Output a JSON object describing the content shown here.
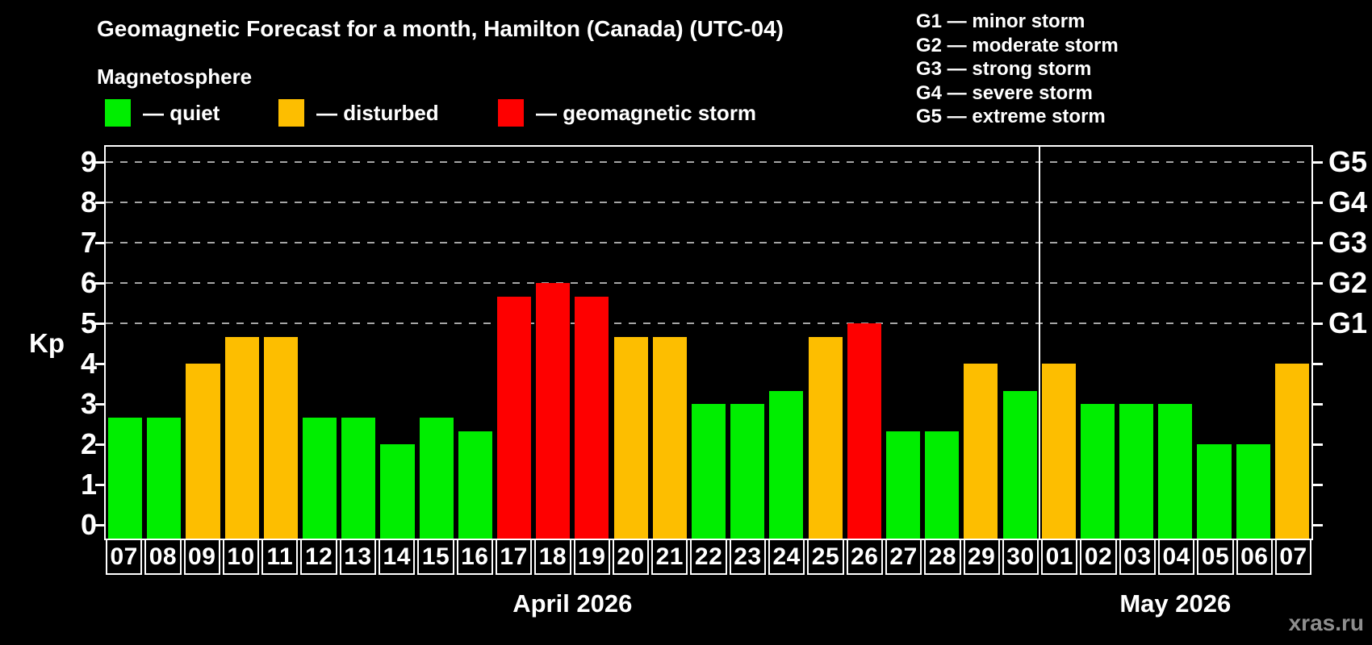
{
  "header": {
    "title": "Geomagnetic Forecast for a month, Hamilton (Canada) (UTC-04)",
    "subtitle": "Magnetosphere"
  },
  "legend": {
    "items": [
      {
        "key": "quiet",
        "label": "— quiet",
        "color": "#00ee00"
      },
      {
        "key": "disturbed",
        "label": "— disturbed",
        "color": "#fdbe00"
      },
      {
        "key": "storm",
        "label": "— geomagnetic storm",
        "color": "#fe0000"
      }
    ]
  },
  "g_legend": [
    {
      "label": "G1 — minor storm"
    },
    {
      "label": "G2 — moderate storm"
    },
    {
      "label": "G3 — strong storm"
    },
    {
      "label": "G4 — severe storm"
    },
    {
      "label": "G5 — extreme storm"
    }
  ],
  "watermark": "xras.ru",
  "chart_data": {
    "type": "bar",
    "title": "Geomagnetic Forecast for a month, Hamilton (Canada) (UTC-04)",
    "ylabel": "Kp",
    "ylim": [
      0,
      9
    ],
    "y_ticks": [
      0,
      1,
      2,
      3,
      4,
      5,
      6,
      7,
      8,
      9
    ],
    "gridlines_at": [
      5,
      6,
      7,
      8,
      9
    ],
    "grid": "dashed horizontal at G-storm levels only",
    "right_axis": [
      {
        "label": "G1",
        "kp": 5
      },
      {
        "label": "G2",
        "kp": 6
      },
      {
        "label": "G3",
        "kp": 7
      },
      {
        "label": "G4",
        "kp": 8
      },
      {
        "label": "G5",
        "kp": 9
      }
    ],
    "months": [
      {
        "label": "April 2026",
        "count": 24
      },
      {
        "label": "May 2026",
        "count": 7
      }
    ],
    "categories": [
      "07",
      "08",
      "09",
      "10",
      "11",
      "12",
      "13",
      "14",
      "15",
      "16",
      "17",
      "18",
      "19",
      "20",
      "21",
      "22",
      "23",
      "24",
      "25",
      "26",
      "27",
      "28",
      "29",
      "30",
      "01",
      "02",
      "03",
      "04",
      "05",
      "06",
      "07"
    ],
    "values": [
      2.67,
      2.67,
      4,
      4.67,
      4.67,
      2.67,
      2.67,
      2,
      2.67,
      2.33,
      5.67,
      6,
      5.67,
      4.67,
      4.67,
      3,
      3,
      3.33,
      4.67,
      5,
      2.33,
      2.33,
      4,
      3.33,
      4,
      3,
      3,
      3,
      2,
      2,
      4
    ],
    "levels": [
      "quiet",
      "quiet",
      "disturbed",
      "disturbed",
      "disturbed",
      "quiet",
      "quiet",
      "quiet",
      "quiet",
      "quiet",
      "storm",
      "storm",
      "storm",
      "disturbed",
      "disturbed",
      "quiet",
      "quiet",
      "quiet",
      "disturbed",
      "storm",
      "quiet",
      "quiet",
      "disturbed",
      "quiet",
      "disturbed",
      "quiet",
      "quiet",
      "quiet",
      "quiet",
      "quiet",
      "disturbed"
    ],
    "level_colors": {
      "quiet": "#00ee00",
      "disturbed": "#fdbe00",
      "storm": "#fe0000"
    },
    "legend_position": "top-left",
    "background": "#000000"
  }
}
